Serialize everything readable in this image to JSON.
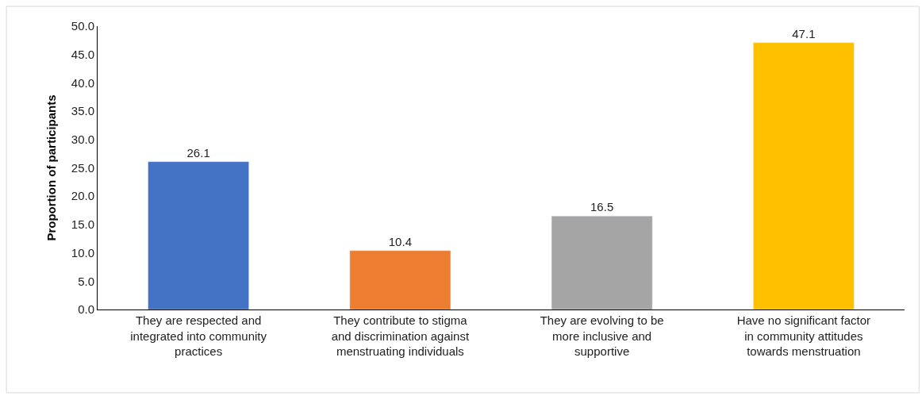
{
  "chart_data": {
    "type": "bar",
    "ylabel": "Proportion of participants",
    "categories": [
      "They are respected and\nintegrated into community\npractices",
      "They contribute to stigma\nand discrimination against\nmenstruating individuals",
      "They are evolving to be\nmore inclusive and\nsupportive",
      "Have no significant factor\nin community attitudes\ntowards menstruation"
    ],
    "values": [
      26.1,
      10.4,
      16.5,
      47.1
    ],
    "colors": [
      "#4472c4",
      "#ed7d31",
      "#a5a5a5",
      "#ffc000"
    ],
    "ylim": [
      0,
      50
    ],
    "yticks": [
      {
        "value": 0,
        "label": "0.0"
      },
      {
        "value": 5,
        "label": "5.0"
      },
      {
        "value": 10,
        "label": "10.0"
      },
      {
        "value": 15,
        "label": "15.0"
      },
      {
        "value": 20,
        "label": "20.0"
      },
      {
        "value": 25,
        "label": "25.0"
      },
      {
        "value": 30,
        "label": "30.0"
      },
      {
        "value": 35,
        "label": "35.0"
      },
      {
        "value": 40,
        "label": "40.0"
      },
      {
        "value": 45,
        "label": "45.0"
      },
      {
        "value": 50,
        "label": "50.0"
      }
    ],
    "data_labels": true
  }
}
